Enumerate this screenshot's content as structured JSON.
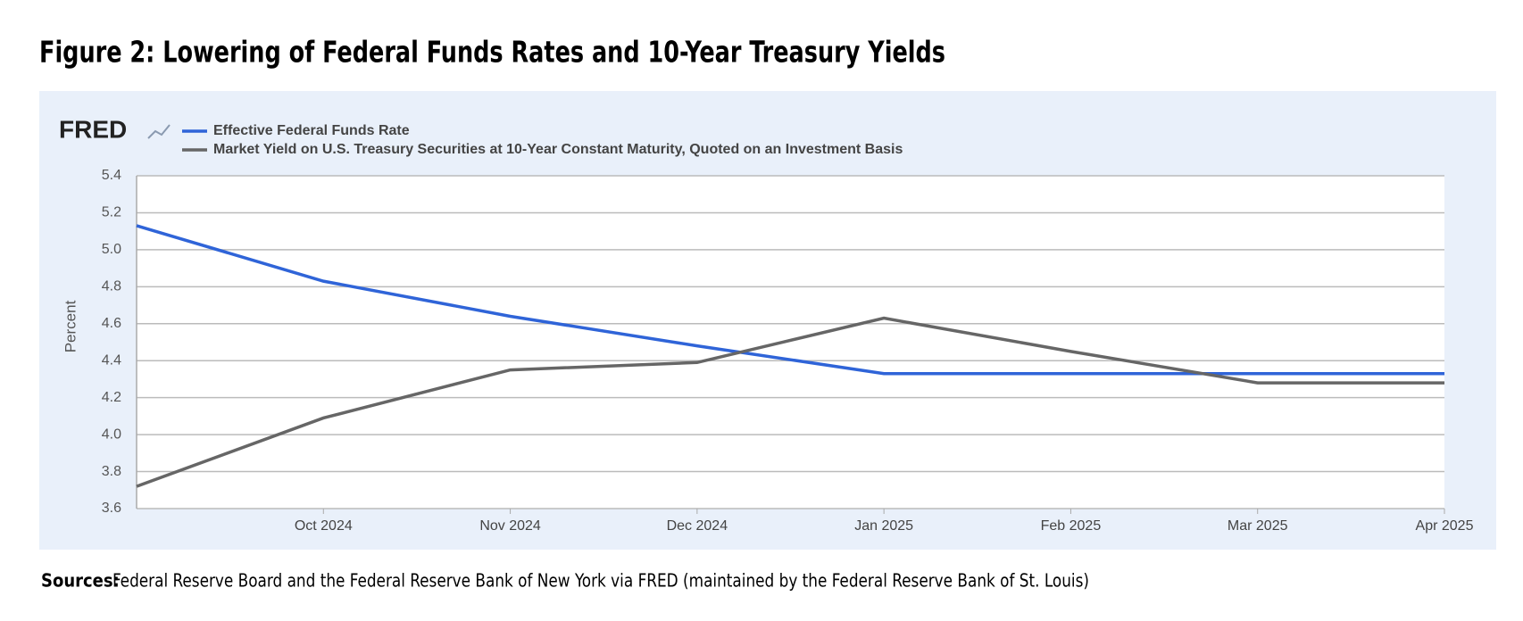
{
  "heading": "Figure 2: Lowering of Federal Funds Rates and 10-Year Treasury Yields",
  "chart_data": {
    "type": "line",
    "logo": "FRED",
    "y_label": "Percent",
    "categories": [
      null,
      "Oct 2024",
      "Nov 2024",
      "Dec 2024",
      "Jan 2025",
      "Feb 2025",
      "Mar 2025",
      "Apr 2025"
    ],
    "series": [
      {
        "name": "Effective Federal Funds Rate",
        "color": "#2f64d8",
        "values": [
          5.13,
          4.83,
          4.64,
          4.48,
          4.33,
          4.33,
          4.33,
          4.33
        ]
      },
      {
        "name": "Market Yield on U.S. Treasury Securities at 10-Year Constant Maturity, Quoted on an Investment Basis",
        "color": "#666666",
        "values": [
          3.72,
          4.09,
          4.35,
          4.39,
          4.63,
          4.45,
          4.28,
          4.28
        ]
      }
    ],
    "ylim": [
      3.6,
      5.4
    ],
    "yticks": [
      3.6,
      3.8,
      {
        "value": 4,
        "label": "4.0"
      },
      4.2,
      4.4,
      4.6,
      4.8,
      {
        "value": 5,
        "label": "5.0"
      },
      5.2,
      5.4
    ],
    "grid": true
  },
  "sources": {
    "label": "Sources:",
    "text": "Federal Reserve Board and the Federal Reserve Bank of New York via FRED (maintained by the Federal Reserve Bank of St. Louis)"
  }
}
